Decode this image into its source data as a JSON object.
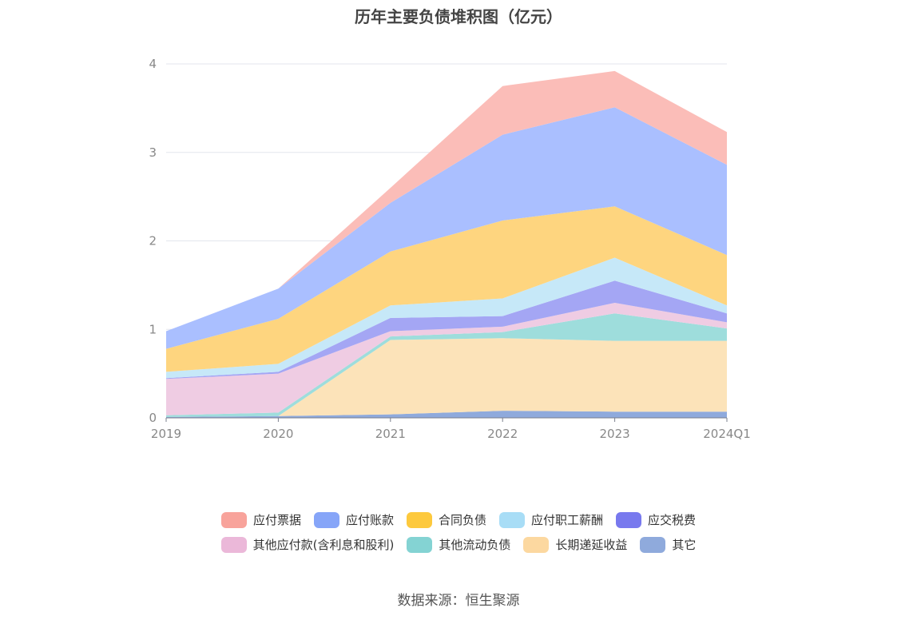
{
  "title": "历年主要负债堆积图（亿元）",
  "source": "数据来源：恒生聚源",
  "chart_data": {
    "type": "area",
    "stacked": true,
    "categories": [
      "2019",
      "2020",
      "2021",
      "2022",
      "2023",
      "2024Q1"
    ],
    "ylim": [
      0,
      4
    ],
    "yticks": [
      "0",
      "1",
      "2",
      "3",
      "4"
    ],
    "grid": true,
    "legend_position": "bottom",
    "series": [
      {
        "name": "其它",
        "color": "#8FAADC",
        "values": [
          0.01,
          0.02,
          0.04,
          0.08,
          0.07,
          0.07
        ]
      },
      {
        "name": "长期递延收益",
        "color": "#FCE3B9",
        "values": [
          0.0,
          0.0,
          0.84,
          0.82,
          0.8,
          0.8
        ]
      },
      {
        "name": "其他流动负债",
        "color": "#9EDDDC",
        "values": [
          0.02,
          0.04,
          0.04,
          0.07,
          0.31,
          0.14
        ]
      },
      {
        "name": "其他应付款(含利息和股利)",
        "color": "#EFCCE3",
        "values": [
          0.41,
          0.44,
          0.06,
          0.06,
          0.12,
          0.07
        ]
      },
      {
        "name": "应交税费",
        "color": "#A4A6F4",
        "values": [
          0.01,
          0.02,
          0.15,
          0.12,
          0.25,
          0.1
        ]
      },
      {
        "name": "应付职工薪酬",
        "color": "#C6E8F8",
        "values": [
          0.07,
          0.09,
          0.14,
          0.2,
          0.26,
          0.09
        ]
      },
      {
        "name": "合同负债",
        "color": "#FED57F",
        "values": [
          0.26,
          0.51,
          0.61,
          0.88,
          0.58,
          0.57
        ]
      },
      {
        "name": "应付账款",
        "color": "#AABFFF",
        "values": [
          0.2,
          0.34,
          0.55,
          0.97,
          1.12,
          1.02
        ]
      },
      {
        "name": "应付票据",
        "color": "#FBBDB8",
        "values": [
          0.0,
          0.0,
          0.17,
          0.55,
          0.41,
          0.37
        ]
      }
    ]
  },
  "legend": {
    "row1": [
      {
        "label": "应付票据",
        "color": "#F8A39B"
      },
      {
        "label": "应付账款",
        "color": "#86A5F8"
      },
      {
        "label": "合同负债",
        "color": "#FDC93D"
      },
      {
        "label": "应付职工薪酬",
        "color": "#A8DDF6"
      },
      {
        "label": "应交税费",
        "color": "#7879EE"
      }
    ],
    "row2": [
      {
        "label": "其他应付款(含利息和股利)",
        "color": "#EBB8D9"
      },
      {
        "label": "其他流动负债",
        "color": "#84D3D3"
      },
      {
        "label": "长期递延收益",
        "color": "#FCD8A0"
      },
      {
        "label": "其它",
        "color": "#8FAADC"
      }
    ]
  }
}
